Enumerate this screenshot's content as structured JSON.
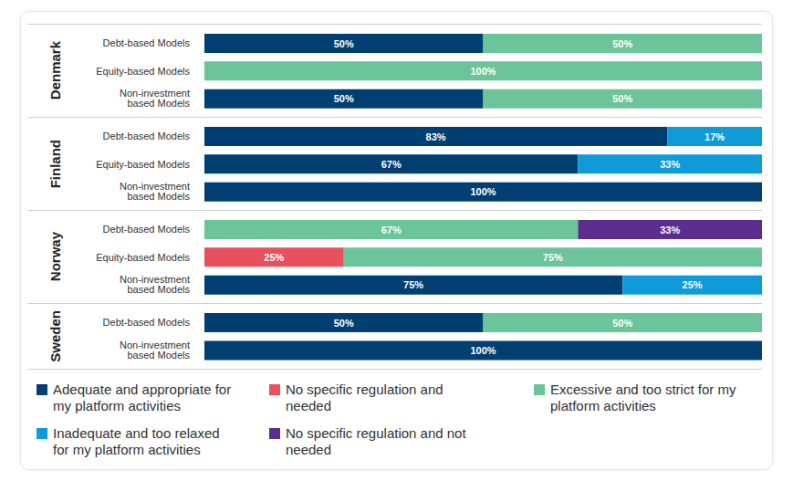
{
  "chart_data": {
    "type": "bar",
    "orientation": "horizontal",
    "stacked": true,
    "data_labels": true,
    "tick_labels": "y",
    "legend": "bottom",
    "groups": [
      {
        "name": "Denmark",
        "categories": [
          "Debt-based Models",
          "Equity-based Models",
          "Non-investment based Models"
        ]
      },
      {
        "name": "Finland",
        "categories": [
          "Debt-based Models",
          "Equity-based Models",
          "Non-investment based Models"
        ]
      },
      {
        "name": "Norway",
        "categories": [
          "Debt-based Models",
          "Equity-based Models",
          "Non-investment based Models"
        ]
      },
      {
        "name": "Sweden",
        "categories": [
          "Debt-based Models",
          "Non-investment based Models"
        ]
      }
    ],
    "series": [
      {
        "name": "Adequate and appropriate for my platform activities",
        "color": "#003f72",
        "values": [
          50,
          null,
          50,
          83,
          67,
          100,
          null,
          null,
          75,
          50,
          100
        ],
        "value_labels": [
          "50%",
          null,
          "50%",
          "83%",
          "67%",
          "100%",
          null,
          null,
          "75%",
          "50%",
          "100%"
        ]
      },
      {
        "name": "No specific regulation and needed",
        "color": "#e8505b",
        "values": [
          null,
          null,
          null,
          null,
          null,
          null,
          null,
          25,
          null,
          null,
          null
        ],
        "value_labels": [
          null,
          null,
          null,
          null,
          null,
          null,
          null,
          "25%",
          null,
          null,
          null
        ]
      },
      {
        "name": "Excessive and too strict for my platform activities",
        "color": "#6cc49a",
        "values": [
          50,
          100,
          50,
          null,
          null,
          null,
          67,
          75,
          null,
          50,
          null
        ],
        "value_labels": [
          "50%",
          "100%",
          "50%",
          null,
          null,
          null,
          "67%",
          "75%",
          null,
          "50%",
          null
        ]
      },
      {
        "name": "Inadequate and too relaxed for my platform activities",
        "color": "#0e9bd8",
        "values": [
          null,
          null,
          null,
          17,
          33,
          null,
          null,
          null,
          25,
          null,
          null
        ],
        "value_labels": [
          null,
          null,
          null,
          "17%",
          "33%",
          null,
          null,
          null,
          "25%",
          null,
          null
        ]
      },
      {
        "name": "No specific regulation and not needed",
        "color": "#5b2d8e",
        "values": [
          null,
          null,
          null,
          null,
          null,
          null,
          33,
          null,
          null,
          null,
          null
        ],
        "value_labels": [
          null,
          null,
          null,
          null,
          null,
          null,
          "33%",
          null,
          null,
          null,
          null
        ]
      }
    ]
  }
}
